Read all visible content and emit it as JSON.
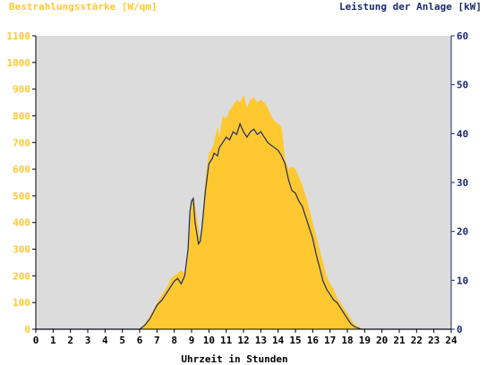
{
  "chart_data": {
    "type": "area",
    "ylabel_left": "Bestrahlungsstärke [W/qm]",
    "ylabel_right": "Leistung der Anlage [kW]",
    "xlabel": "Uhrzeit in Stunden",
    "xlim": [
      0,
      24
    ],
    "ylim_left": [
      0,
      1100
    ],
    "ylim_right": [
      0,
      60
    ],
    "x_ticks": [
      "0",
      "1",
      "2",
      "3",
      "4",
      "5",
      "6",
      "7",
      "8",
      "9",
      "10",
      "11",
      "12",
      "13",
      "14",
      "15",
      "16",
      "17",
      "18",
      "19",
      "20",
      "21",
      "22",
      "23",
      "24"
    ],
    "y_ticks_left": [
      "0",
      "100",
      "200",
      "300",
      "400",
      "500",
      "600",
      "700",
      "800",
      "900",
      "1000",
      "1100"
    ],
    "y_ticks_right": [
      "0",
      "10",
      "20",
      "30",
      "40",
      "50",
      "60"
    ],
    "colors": {
      "irradiance": "#ffc830",
      "power": "#1a2a6c",
      "plot_bg": "#dcdcdc",
      "left_axis_text": "#ffc830",
      "right_axis_text": "#1a2a6c"
    },
    "series": [
      {
        "kind": "area",
        "axis": "left",
        "x": [
          0,
          6.0,
          6.3,
          6.6,
          7.0,
          7.3,
          7.6,
          7.8,
          8.0,
          8.2,
          8.4,
          8.6,
          8.8,
          8.9,
          9.0,
          9.1,
          9.2,
          9.4,
          9.5,
          9.6,
          9.8,
          10.0,
          10.2,
          10.3,
          10.5,
          10.6,
          10.8,
          11.0,
          11.2,
          11.4,
          11.6,
          11.8,
          12.0,
          12.2,
          12.4,
          12.6,
          12.8,
          13.0,
          13.2,
          13.4,
          13.6,
          13.8,
          14.0,
          14.2,
          14.4,
          14.6,
          14.8,
          15.0,
          15.2,
          15.4,
          15.6,
          15.8,
          16.0,
          16.2,
          16.4,
          16.6,
          16.8,
          17.0,
          17.2,
          17.4,
          17.6,
          17.8,
          18.0,
          18.2,
          18.4,
          18.6,
          18.8,
          19.0,
          19.2,
          24
        ],
        "y": [
          0,
          0,
          20,
          50,
          100,
          130,
          160,
          190,
          200,
          210,
          220,
          210,
          300,
          420,
          480,
          500,
          460,
          380,
          340,
          400,
          560,
          660,
          680,
          700,
          760,
          720,
          800,
          790,
          820,
          840,
          860,
          850,
          880,
          830,
          860,
          870,
          850,
          860,
          850,
          830,
          800,
          780,
          770,
          760,
          640,
          600,
          610,
          600,
          570,
          540,
          500,
          450,
          400,
          350,
          300,
          250,
          200,
          170,
          150,
          120,
          100,
          80,
          60,
          40,
          20,
          10,
          5,
          0,
          0,
          0
        ]
      },
      {
        "kind": "line",
        "axis": "left",
        "x": [
          0,
          6.0,
          6.3,
          6.6,
          7.0,
          7.3,
          7.6,
          7.8,
          8.0,
          8.2,
          8.4,
          8.6,
          8.8,
          8.9,
          9.0,
          9.1,
          9.2,
          9.4,
          9.5,
          9.6,
          9.8,
          10.0,
          10.2,
          10.3,
          10.5,
          10.6,
          10.8,
          11.0,
          11.2,
          11.4,
          11.6,
          11.8,
          12.0,
          12.2,
          12.4,
          12.6,
          12.8,
          13.0,
          13.2,
          13.4,
          13.6,
          13.8,
          14.0,
          14.2,
          14.4,
          14.6,
          14.8,
          15.0,
          15.2,
          15.4,
          15.6,
          15.8,
          16.0,
          16.2,
          16.4,
          16.6,
          16.8,
          17.0,
          17.2,
          17.4,
          17.6,
          17.8,
          18.0,
          18.2,
          18.4,
          18.6,
          18.8,
          19.0,
          19.2,
          24
        ],
        "y": [
          0,
          0,
          15,
          40,
          90,
          110,
          140,
          160,
          180,
          190,
          170,
          200,
          300,
          440,
          480,
          490,
          400,
          320,
          330,
          380,
          520,
          620,
          640,
          660,
          650,
          680,
          700,
          720,
          710,
          740,
          730,
          770,
          740,
          720,
          740,
          750,
          730,
          740,
          720,
          700,
          690,
          680,
          670,
          650,
          620,
          560,
          520,
          510,
          480,
          460,
          420,
          380,
          340,
          280,
          230,
          180,
          150,
          130,
          110,
          100,
          80,
          60,
          40,
          20,
          10,
          5,
          0,
          0,
          0,
          0
        ]
      }
    ]
  }
}
